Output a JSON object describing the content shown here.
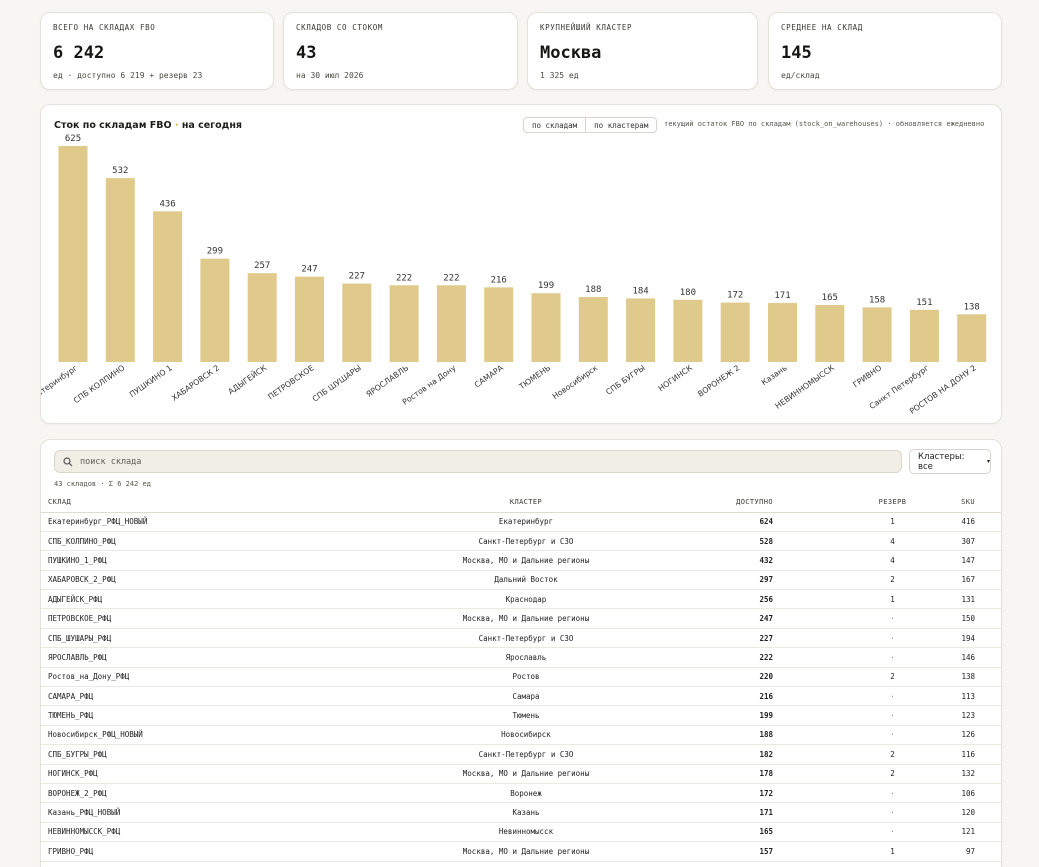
{
  "kpis": [
    {
      "label": "ВСЕГО НА СКЛАДАХ FBO",
      "value": "6 242",
      "sub": "ед · доступно 6 219 + резерв 23"
    },
    {
      "label": "СКЛАДОВ СО СТОКОМ",
      "value": "43",
      "sub": "на 30 июл 2026"
    },
    {
      "label": "КРУПНЕЙШИЙ КЛАСТЕР",
      "value": "Москва",
      "sub": "1 325 ед"
    },
    {
      "label": "СРЕДНЕЕ НА СКЛАД",
      "value": "145",
      "sub": "ед/склад"
    }
  ],
  "chart_header": {
    "title_main": "Сток по складам FBO",
    "title_sep": " · ",
    "title_rest": "на сегодня",
    "toggle_warehouses": "по складам",
    "toggle_clusters": "по кластерам",
    "note": "текущий остаток FBO по складам (stock_on_warehouses) · обновляется ежедневно"
  },
  "colors": {
    "bar": "#e0ca8b",
    "accent": "#d9a535"
  },
  "chart_data": {
    "type": "bar",
    "categories": [
      "Екатеринбург",
      "СПБ КОЛПИНО",
      "ПУШКИНО 1",
      "ХАБАРОВСК 2",
      "АДЫГЕЙСК",
      "ПЕТРОВСКОЕ",
      "СПБ ШУШАРЫ",
      "ЯРОСЛАВЛЬ",
      "Ростов на Дону",
      "САМАРА",
      "ТЮМЕНЬ",
      "Новосибирск",
      "СПБ БУГРЫ",
      "НОГИНСК",
      "ВОРОНЕЖ 2",
      "Казань",
      "НЕВИННОМЫССК",
      "ГРИВНО",
      "Санкт Петербург",
      "РОСТОВ НА ДОНУ 2"
    ],
    "values": [
      625,
      532,
      436,
      299,
      257,
      247,
      227,
      222,
      222,
      216,
      199,
      188,
      184,
      180,
      172,
      171,
      165,
      158,
      151,
      138
    ],
    "title": "Сток по складам FBO · на сегодня",
    "ylim": [
      0,
      625
    ],
    "grid": false
  },
  "table": {
    "search_placeholder": "поиск склада",
    "cluster_filter": "Кластеры: все",
    "meta": "43 складов · Σ 6 242 ед",
    "headers": {
      "name": "СКЛАД",
      "cluster": "КЛАСТЕР",
      "available": "ДОСТУПНО",
      "reserve": "РЕЗЕРВ",
      "sku": "SKU"
    },
    "rows": [
      {
        "name": "Екатеринбург_РФЦ_НОВЫЙ",
        "cluster": "Екатеринбург",
        "available": "624",
        "reserve": "1",
        "sku": "416"
      },
      {
        "name": "СПБ_КОЛПИНО_РФЦ",
        "cluster": "Санкт-Петербург и СЗО",
        "available": "528",
        "reserve": "4",
        "sku": "307"
      },
      {
        "name": "ПУШКИНО_1_РФЦ",
        "cluster": "Москва, МО и Дальние регионы",
        "available": "432",
        "reserve": "4",
        "sku": "147"
      },
      {
        "name": "ХАБАРОВСК_2_РФЦ",
        "cluster": "Дальний Восток",
        "available": "297",
        "reserve": "2",
        "sku": "167"
      },
      {
        "name": "АДЫГЕЙСК_РФЦ",
        "cluster": "Краснодар",
        "available": "256",
        "reserve": "1",
        "sku": "131"
      },
      {
        "name": "ПЕТРОВСКОЕ_РФЦ",
        "cluster": "Москва, МО и Дальние регионы",
        "available": "247",
        "reserve": "·",
        "sku": "150"
      },
      {
        "name": "СПБ_ШУШАРЫ_РФЦ",
        "cluster": "Санкт-Петербург и СЗО",
        "available": "227",
        "reserve": "·",
        "sku": "194"
      },
      {
        "name": "ЯРОСЛАВЛЬ_РФЦ",
        "cluster": "Ярославль",
        "available": "222",
        "reserve": "·",
        "sku": "146"
      },
      {
        "name": "Ростов_на_Дону_РФЦ",
        "cluster": "Ростов",
        "available": "220",
        "reserve": "2",
        "sku": "138"
      },
      {
        "name": "САМАРА_РФЦ",
        "cluster": "Самара",
        "available": "216",
        "reserve": "·",
        "sku": "113"
      },
      {
        "name": "ТЮМЕНЬ_РФЦ",
        "cluster": "Тюмень",
        "available": "199",
        "reserve": "·",
        "sku": "123"
      },
      {
        "name": "Новосибирск_РФЦ_НОВЫЙ",
        "cluster": "Новосибирск",
        "available": "188",
        "reserve": "·",
        "sku": "126"
      },
      {
        "name": "СПБ_БУГРЫ_РФЦ",
        "cluster": "Санкт-Петербург и СЗО",
        "available": "182",
        "reserve": "2",
        "sku": "116"
      },
      {
        "name": "НОГИНСК_РФЦ",
        "cluster": "Москва, МО и Дальние регионы",
        "available": "178",
        "reserve": "2",
        "sku": "132"
      },
      {
        "name": "ВОРОНЕЖ_2_РФЦ",
        "cluster": "Воронеж",
        "available": "172",
        "reserve": "·",
        "sku": "106"
      },
      {
        "name": "Казань_РФЦ_НОВЫЙ",
        "cluster": "Казань",
        "available": "171",
        "reserve": "·",
        "sku": "120"
      },
      {
        "name": "НЕВИННОМЫССК_РФЦ",
        "cluster": "Невинномысск",
        "available": "165",
        "reserve": "·",
        "sku": "121"
      },
      {
        "name": "ГРИВНО_РФЦ",
        "cluster": "Москва, МО и Дальние регионы",
        "available": "157",
        "reserve": "1",
        "sku": "97"
      }
    ]
  }
}
